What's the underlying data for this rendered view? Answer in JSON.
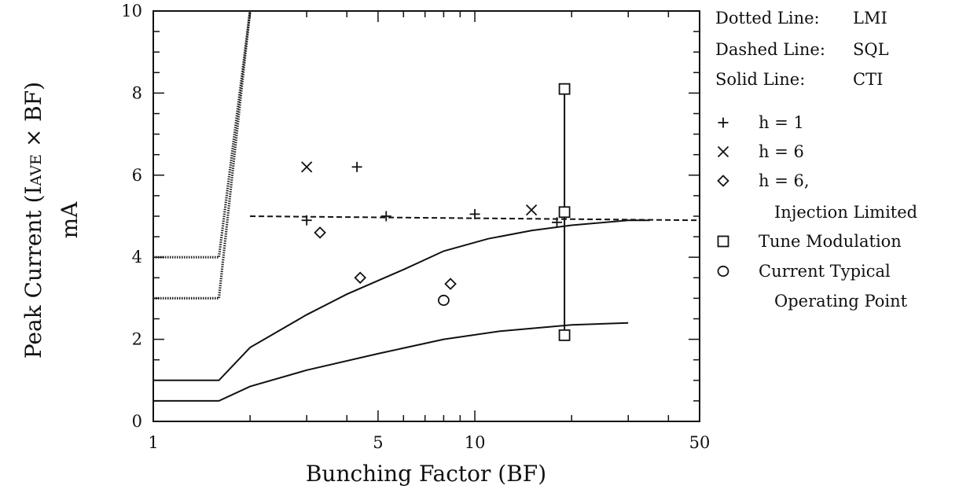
{
  "chart_data": {
    "type": "scatter",
    "x_scale": "log",
    "xlim": [
      1,
      50
    ],
    "ylim": [
      0,
      10
    ],
    "x_ticks": [
      1,
      5,
      10,
      50
    ],
    "x_tick_labels": [
      "1",
      "5",
      "10",
      "50"
    ],
    "y_ticks": [
      0,
      2,
      4,
      6,
      8,
      10
    ],
    "y_tick_labels": [
      "0",
      "2",
      "4",
      "6",
      "8",
      "10"
    ],
    "xlabel": "Bunching Factor (BF)",
    "ylabel_line1": "Peak Current (I",
    "ylabel_sub": "AVE",
    "ylabel_line1_end": " × BF)",
    "ylabel_line2": "mA",
    "legend_position": "right",
    "line_legend": [
      {
        "key": "dotted",
        "label": "Dotted Line:",
        "value": "LMI"
      },
      {
        "key": "dashed",
        "label": "Dashed Line:",
        "value": "SQL"
      },
      {
        "key": "solid",
        "label": "Solid Line:",
        "value": "CTI"
      }
    ],
    "marker_legend": [
      {
        "symbol": "plus",
        "glyph": "+",
        "lines": [
          "h  =  1"
        ]
      },
      {
        "symbol": "cross",
        "glyph": "×",
        "lines": [
          "h  =  6"
        ]
      },
      {
        "symbol": "diamond",
        "glyph": "◇",
        "lines": [
          "h  =  6,",
          "Injection Limited"
        ]
      },
      {
        "symbol": "square",
        "glyph": "□",
        "lines": [
          "Tune Modulation"
        ]
      },
      {
        "symbol": "circle",
        "glyph": "o",
        "lines": [
          "Current Typical",
          "Operating Point"
        ]
      }
    ],
    "lines": [
      {
        "name": "LMI",
        "style": "dotted",
        "points": [
          [
            1,
            4.0
          ],
          [
            1.6,
            4.0
          ],
          [
            2.0,
            10.0
          ]
        ]
      },
      {
        "name": "LMI",
        "style": "dotted",
        "points": [
          [
            1,
            3.0
          ],
          [
            1.6,
            3.0
          ],
          [
            2.0,
            10.0
          ]
        ]
      },
      {
        "name": "SQL",
        "style": "dashed",
        "points": [
          [
            2.0,
            5.0
          ],
          [
            50,
            4.9
          ]
        ]
      },
      {
        "name": "CTI",
        "style": "solid",
        "points": [
          [
            1,
            1.0
          ],
          [
            1.6,
            1.0
          ],
          [
            2.0,
            1.8
          ],
          [
            3.0,
            2.6
          ],
          [
            4.0,
            3.1
          ],
          [
            6.0,
            3.7
          ],
          [
            8.0,
            4.15
          ],
          [
            11.0,
            4.45
          ],
          [
            15.0,
            4.65
          ],
          [
            20.0,
            4.78
          ],
          [
            30.0,
            4.9
          ],
          [
            35.0,
            4.9
          ]
        ]
      },
      {
        "name": "CTI",
        "style": "solid",
        "points": [
          [
            1,
            0.5
          ],
          [
            1.6,
            0.5
          ],
          [
            2.0,
            0.85
          ],
          [
            3.0,
            1.25
          ],
          [
            5.0,
            1.65
          ],
          [
            8.0,
            2.0
          ],
          [
            12.0,
            2.2
          ],
          [
            20.0,
            2.35
          ],
          [
            30.0,
            2.4
          ]
        ]
      },
      {
        "name": "Tune Modulation range",
        "style": "solid",
        "points": [
          [
            19.0,
            2.1
          ],
          [
            19.0,
            8.1
          ]
        ]
      }
    ],
    "series": [
      {
        "symbol": "plus",
        "points": [
          [
            3.0,
            4.9
          ],
          [
            4.3,
            6.2
          ],
          [
            5.3,
            5.0
          ],
          [
            10.0,
            5.05
          ],
          [
            18.0,
            4.85
          ]
        ]
      },
      {
        "symbol": "cross",
        "points": [
          [
            3.0,
            6.2
          ],
          [
            15.0,
            5.15
          ]
        ]
      },
      {
        "symbol": "diamond",
        "points": [
          [
            3.3,
            4.6
          ],
          [
            4.4,
            3.5
          ],
          [
            8.4,
            3.35
          ]
        ]
      },
      {
        "symbol": "square",
        "points": [
          [
            19.0,
            8.1
          ],
          [
            19.0,
            5.1
          ],
          [
            19.0,
            2.1
          ]
        ]
      },
      {
        "symbol": "circle",
        "points": [
          [
            8.0,
            2.95
          ]
        ]
      }
    ]
  }
}
